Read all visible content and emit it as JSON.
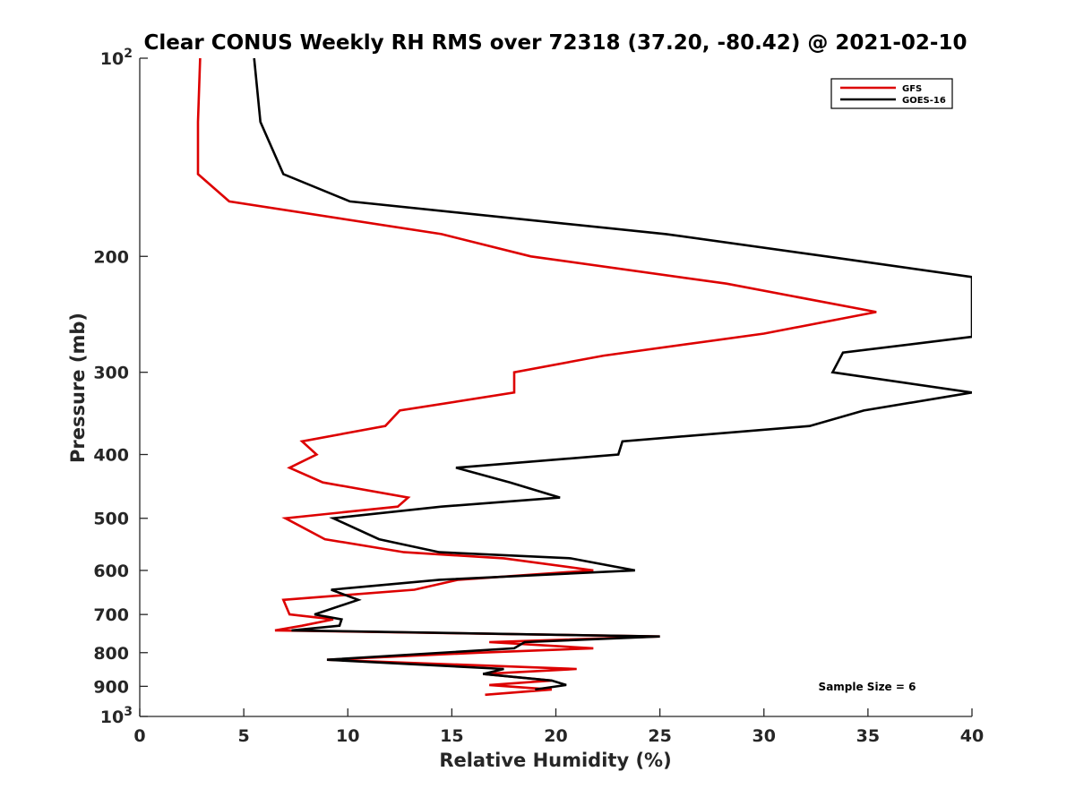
{
  "chart_data": {
    "type": "line",
    "title": "Clear CONUS Weekly RH RMS over 72318 (37.20, -80.42) @ 2021-02-10",
    "xlabel": "Relative Humidity (%)",
    "ylabel": "Pressure (mb)",
    "xlim": [
      0,
      40
    ],
    "ylim": [
      100,
      1000
    ],
    "y_scale": "log",
    "y_reversed": true,
    "x_ticks": [
      "0",
      "5",
      "10",
      "15",
      "20",
      "25",
      "30",
      "35",
      "40"
    ],
    "y_ticks": [
      {
        "value": 100,
        "label": "10",
        "sup": "2"
      },
      {
        "value": 200,
        "label": "200"
      },
      {
        "value": 300,
        "label": "300"
      },
      {
        "value": 400,
        "label": "400"
      },
      {
        "value": 500,
        "label": "500"
      },
      {
        "value": 600,
        "label": "600"
      },
      {
        "value": 700,
        "label": "700"
      },
      {
        "value": 800,
        "label": "800"
      },
      {
        "value": 900,
        "label": "900"
      },
      {
        "value": 1000,
        "label": "10",
        "sup": "3"
      }
    ],
    "legend_position": "top-right",
    "grid": false,
    "annotation": "Sample Size = 6",
    "series": [
      {
        "name": "GFS",
        "color": "#dd0000",
        "points": [
          [
            2.9,
            100
          ],
          [
            2.8,
            125
          ],
          [
            2.8,
            150
          ],
          [
            4.3,
            165
          ],
          [
            14.5,
            185
          ],
          [
            18.8,
            200
          ],
          [
            28.2,
            220
          ],
          [
            35.4,
            243
          ],
          [
            30.0,
            262
          ],
          [
            22.3,
            283
          ],
          [
            18.0,
            300
          ],
          [
            18.0,
            322
          ],
          [
            12.5,
            343
          ],
          [
            11.8,
            362
          ],
          [
            7.8,
            382
          ],
          [
            8.5,
            400
          ],
          [
            7.2,
            419
          ],
          [
            8.8,
            441
          ],
          [
            12.9,
            465
          ],
          [
            12.4,
            480
          ],
          [
            7.0,
            500
          ],
          [
            8.9,
            538
          ],
          [
            12.7,
            563
          ],
          [
            17.5,
            575
          ],
          [
            21.8,
            600
          ],
          [
            15.3,
            620
          ],
          [
            13.2,
            642
          ],
          [
            6.9,
            665
          ],
          [
            7.2,
            700
          ],
          [
            9.3,
            712
          ],
          [
            7.8,
            728
          ],
          [
            6.5,
            740
          ],
          [
            25.0,
            756
          ],
          [
            16.8,
            771
          ],
          [
            21.8,
            788
          ],
          [
            16.3,
            800
          ],
          [
            9.0,
            820
          ],
          [
            21.0,
            847
          ],
          [
            16.5,
            862
          ],
          [
            19.8,
            882
          ],
          [
            16.8,
            896
          ],
          [
            19.8,
            910
          ],
          [
            16.6,
            927
          ]
        ]
      },
      {
        "name": "GOES-16",
        "color": "#000000",
        "points": [
          [
            5.5,
            100
          ],
          [
            5.8,
            125
          ],
          [
            6.9,
            150
          ],
          [
            10.1,
            165
          ],
          [
            25.3,
            185
          ],
          [
            33.0,
            200
          ],
          [
            40.0,
            215
          ],
          [
            40.0,
            265
          ],
          [
            33.8,
            280
          ],
          [
            33.3,
            300
          ],
          [
            40.0,
            322
          ],
          [
            34.8,
            343
          ],
          [
            32.2,
            362
          ],
          [
            23.2,
            382
          ],
          [
            23.0,
            400
          ],
          [
            15.2,
            419
          ],
          [
            17.8,
            441
          ],
          [
            20.2,
            465
          ],
          [
            14.5,
            480
          ],
          [
            9.3,
            500
          ],
          [
            11.5,
            538
          ],
          [
            14.4,
            563
          ],
          [
            20.7,
            575
          ],
          [
            23.8,
            600
          ],
          [
            14.4,
            620
          ],
          [
            9.2,
            642
          ],
          [
            10.5,
            665
          ],
          [
            8.4,
            700
          ],
          [
            9.7,
            712
          ],
          [
            9.6,
            728
          ],
          [
            7.3,
            740
          ],
          [
            25.0,
            756
          ],
          [
            18.5,
            771
          ],
          [
            18.0,
            788
          ],
          [
            9.0,
            820
          ],
          [
            17.5,
            847
          ],
          [
            16.5,
            862
          ],
          [
            19.8,
            882
          ],
          [
            20.5,
            896
          ],
          [
            19.0,
            910
          ]
        ]
      }
    ]
  }
}
